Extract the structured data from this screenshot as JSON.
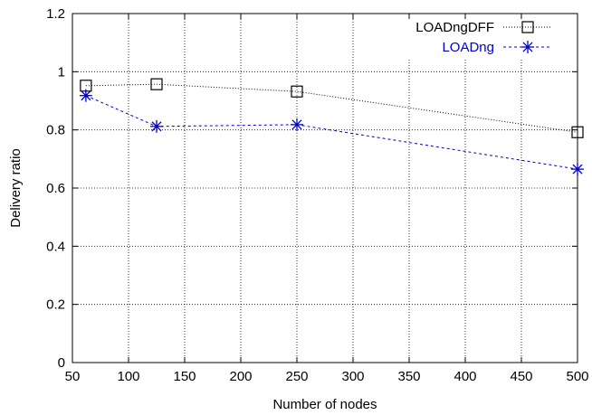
{
  "chart_data": {
    "type": "line",
    "xlabel": "Number of nodes",
    "ylabel": "Delivery ratio",
    "xlim": [
      50,
      500
    ],
    "ylim": [
      0,
      1.2
    ],
    "xticks": [
      50,
      100,
      150,
      200,
      250,
      300,
      350,
      400,
      450,
      500
    ],
    "yticks": [
      0,
      0.2,
      0.4,
      0.6,
      0.8,
      1,
      1.2
    ],
    "xtick_labels": [
      "50",
      "100",
      "150",
      "200",
      "250",
      "300",
      "350",
      "400",
      "450",
      "500"
    ],
    "ytick_labels": [
      "0",
      "0.2",
      "0.4",
      "0.6",
      "0.8",
      "1",
      "1.2"
    ],
    "grid": true,
    "legend_position": "top-right",
    "series": [
      {
        "name": "LOADngDFF",
        "marker": "square",
        "line_style": "dotted",
        "color": "#000000",
        "x": [
          62,
          125,
          250,
          500
        ],
        "y": [
          0.952,
          0.957,
          0.932,
          0.792
        ]
      },
      {
        "name": "LOADng",
        "marker": "star",
        "line_style": "dashed",
        "color": "#0000cc",
        "x": [
          62,
          125,
          250,
          500
        ],
        "y": [
          0.918,
          0.812,
          0.818,
          0.665
        ]
      }
    ]
  }
}
